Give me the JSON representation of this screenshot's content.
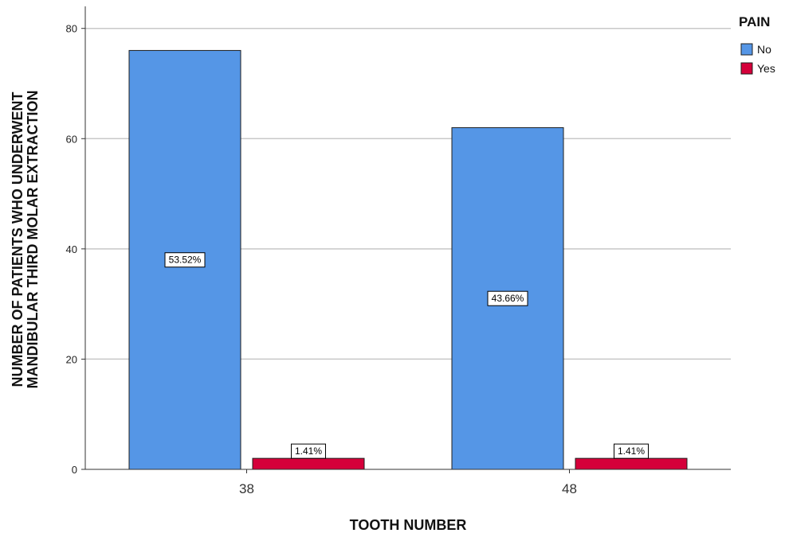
{
  "chart_data": {
    "type": "bar",
    "categories": [
      "38",
      "48"
    ],
    "series": [
      {
        "name": "No",
        "values": [
          76,
          62
        ],
        "color": "#5596e6",
        "labels": [
          "53.52%",
          "43.66%"
        ]
      },
      {
        "name": "Yes",
        "values": [
          2,
          2
        ],
        "color": "#d5003a",
        "labels": [
          "1.41%",
          "1.41%"
        ]
      }
    ],
    "xlabel": "TOOTH NUMBER",
    "ylabel_lines": [
      "NUMBER OF PATIENTS WHO UNDERWENT",
      "MANDIBULAR THIRD MOLAR EXTRACTION"
    ],
    "ylim": [
      0,
      84
    ],
    "yticks": [
      0,
      20,
      40,
      60,
      80
    ],
    "legend_title": "PAIN",
    "legend_position": "top-right",
    "grid": "horizontal"
  }
}
